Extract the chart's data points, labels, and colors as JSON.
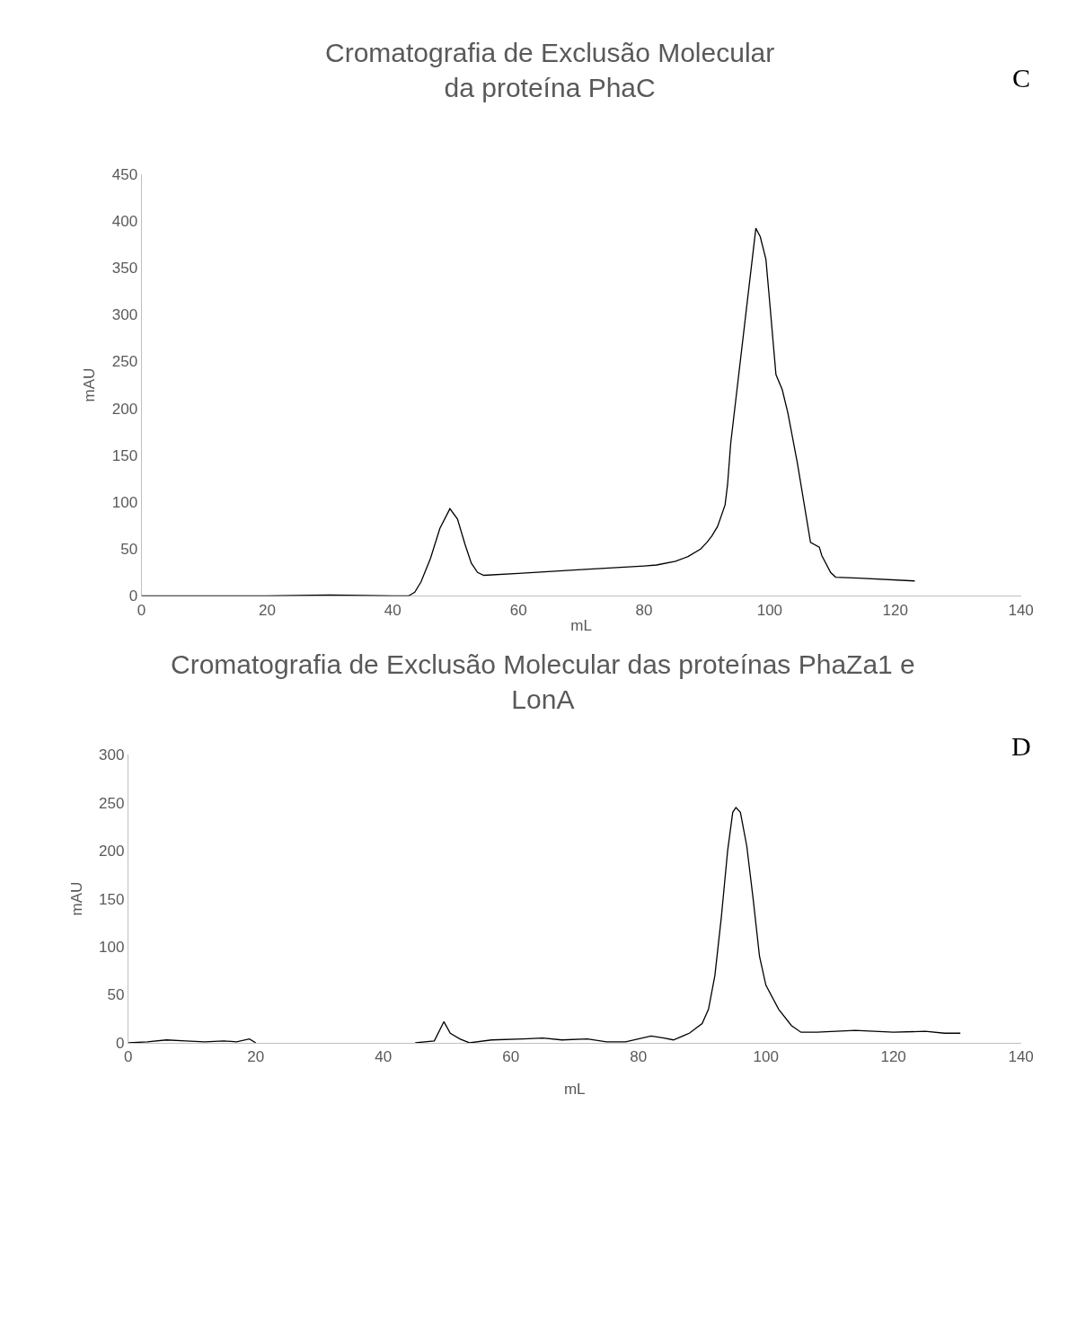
{
  "chart_data": [
    {
      "type": "line",
      "title": "Cromatografia de Exclusão Molecular\nda proteína PhaC",
      "xlabel": "mL",
      "ylabel": "mAU",
      "annotations": [
        "C"
      ],
      "xlim": [
        0,
        140
      ],
      "xticks": [
        0,
        20,
        40,
        60,
        80,
        100,
        120,
        140
      ],
      "ylim": [
        0,
        450
      ],
      "yticks": [
        0,
        50,
        100,
        150,
        200,
        250,
        300,
        350,
        400,
        450
      ],
      "series": [
        {
          "color": "#000000",
          "x": [
            0,
            10,
            20,
            30,
            40,
            42.5,
            43.5,
            44.5,
            46,
            47.5,
            49.1,
            50.3,
            51.5,
            52.5,
            53.5,
            54.5,
            60,
            70,
            80,
            82,
            85,
            87,
            89,
            90,
            90.8,
            91.7,
            92.9,
            93.3,
            93.8,
            97.8,
            98.5,
            99.4,
            99.9,
            101.0,
            102.0,
            102.9,
            104.4,
            106.5,
            107.9,
            108.3,
            109.7,
            110.5,
            114.2,
            123.1
          ],
          "values": [
            0,
            0,
            0,
            1,
            0,
            0,
            4,
            15,
            40,
            72,
            93,
            82,
            55,
            35,
            25,
            22,
            24,
            28,
            32,
            33,
            37,
            42,
            50,
            57,
            64,
            74,
            97,
            119,
            163,
            392,
            383,
            359,
            321,
            236,
            220,
            195,
            142,
            57,
            52,
            43,
            25,
            20,
            19,
            16
          ]
        }
      ]
    },
    {
      "type": "line",
      "title": "Cromatografia de Exclusão Molecular das proteínas PhaZa1 e\nLonA",
      "xlabel": "mL",
      "ylabel": "mAU",
      "annotations": [
        "D"
      ],
      "xlim": [
        0,
        140
      ],
      "xticks": [
        0,
        20,
        40,
        60,
        80,
        100,
        120,
        140
      ],
      "ylim": [
        0,
        300
      ],
      "yticks": [
        0,
        50,
        100,
        150,
        200,
        250,
        300
      ],
      "series": [
        {
          "color": "#000000",
          "x": [
            0,
            3,
            6,
            9,
            12,
            15,
            17,
            19,
            20,
            32,
            45,
            48,
            49.5,
            50.5,
            52,
            53.5,
            57,
            62,
            65,
            68,
            72,
            75,
            78,
            82,
            84,
            85.5,
            88,
            90,
            91,
            92,
            93,
            94,
            94.8,
            95.3,
            96,
            97,
            98,
            99,
            100,
            102,
            104,
            105.5,
            108,
            114,
            120,
            125,
            128,
            130.5
          ],
          "values": [
            0,
            1,
            3,
            2,
            1,
            2,
            1,
            4,
            0,
            null,
            0,
            2,
            22,
            10,
            4,
            0,
            3,
            4,
            5,
            3,
            4,
            1,
            1,
            7,
            5,
            3,
            10,
            20,
            35,
            70,
            130,
            200,
            240,
            245,
            240,
            205,
            150,
            90,
            60,
            35,
            18,
            11,
            11,
            13,
            11,
            12,
            10,
            10
          ]
        }
      ]
    }
  ]
}
